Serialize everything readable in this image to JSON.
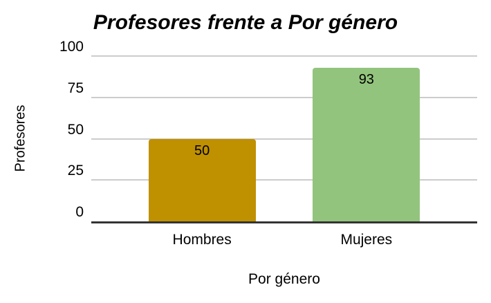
{
  "chart_data": {
    "type": "bar",
    "title": "Profesores frente a Por género",
    "xlabel": "Por género",
    "ylabel": "Profesores",
    "categories": [
      "Hombres",
      "Mujeres"
    ],
    "values": [
      50,
      93
    ],
    "bar_colors": [
      "#BF9000",
      "#93C47D"
    ],
    "value_labels": [
      "50",
      "93"
    ],
    "ylim": [
      0,
      100
    ],
    "yticks": [
      0,
      25,
      50,
      75,
      100
    ],
    "grid": "horizontal",
    "legend": "none",
    "colors": {
      "background": "#FFFFFF",
      "gridline": "#CCCCCC",
      "axis_line": "#333333",
      "text": "#000000"
    }
  }
}
